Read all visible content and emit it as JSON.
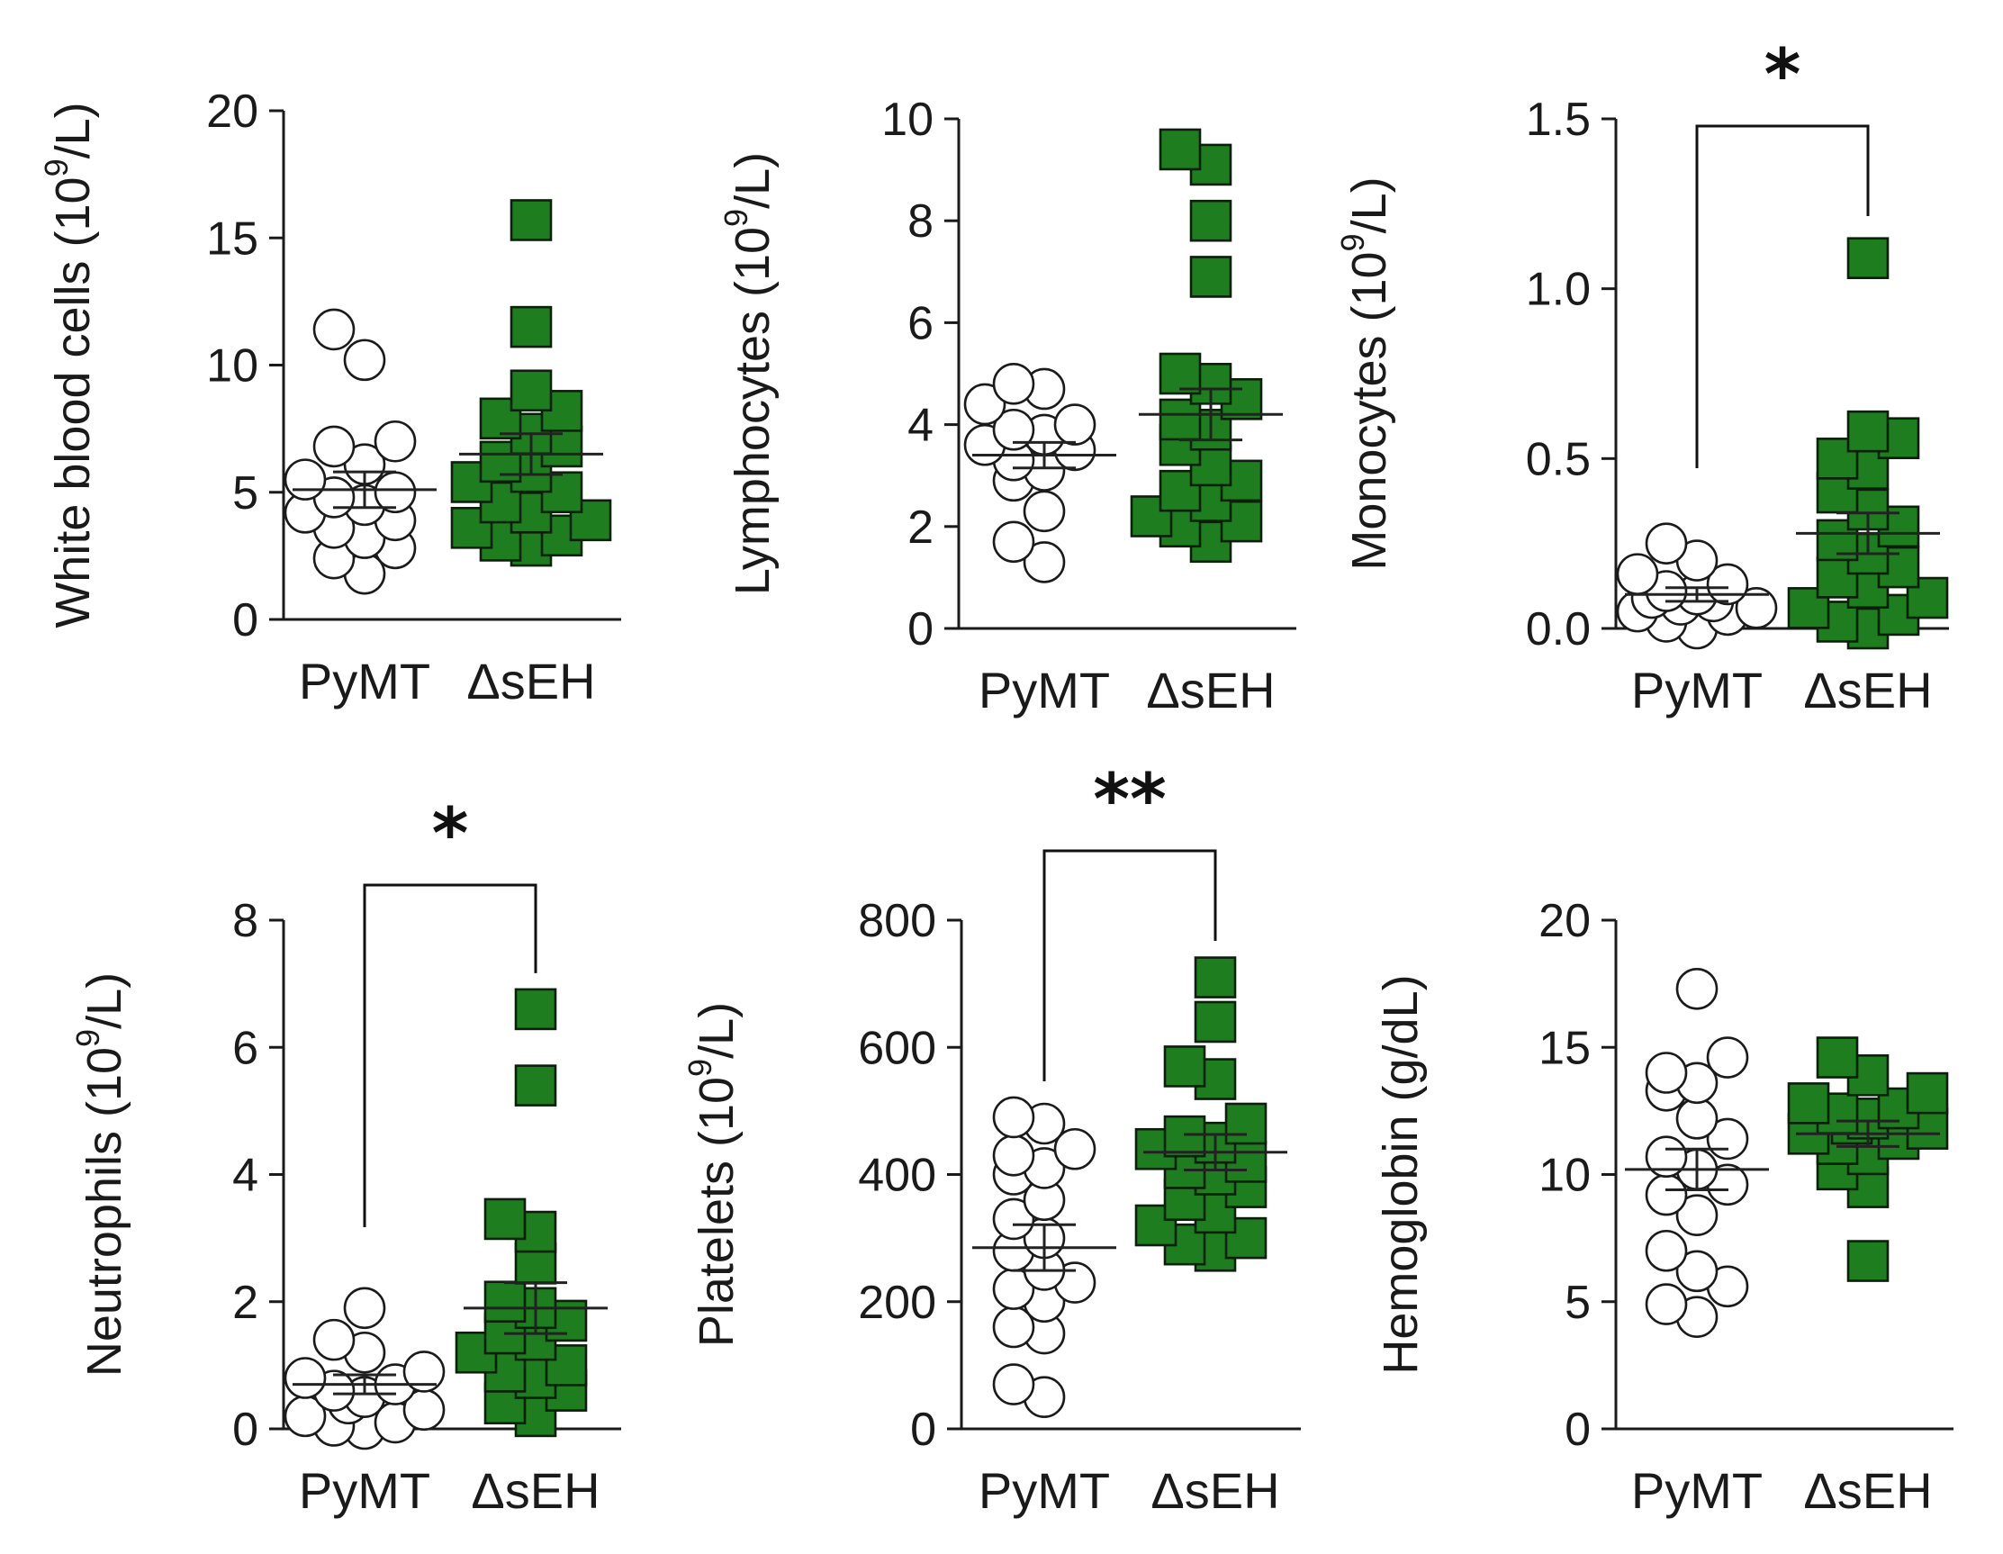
{
  "figure": {
    "group_color": "#1e7d1e",
    "categories": [
      "PyMT",
      "ΔsEH"
    ]
  },
  "chart_data": [
    {
      "type": "scatter",
      "ylabel": "White blood cells (10^9/L)",
      "ylabel_main": "White blood cells (10",
      "ylabel_sup": "9",
      "ylabel_tail": "/L)",
      "ylim": [
        0,
        20
      ],
      "yticks": [
        0,
        5,
        10,
        15,
        20
      ],
      "ytick_labels": [
        "0",
        "5",
        "10",
        "15",
        "20"
      ],
      "categories": [
        "PyMT",
        "ΔsEH"
      ],
      "series": [
        {
          "name": "PyMT",
          "marker": "circle",
          "mean": 5.1,
          "sem": 0.7,
          "values": [
            1.8,
            2.4,
            2.8,
            3.2,
            3.6,
            3.9,
            4.2,
            4.5,
            4.8,
            5.0,
            5.5,
            6.1,
            6.8,
            7.0,
            10.2,
            11.4
          ]
        },
        {
          "name": "ΔsEH",
          "marker": "square",
          "mean": 6.5,
          "sem": 0.8,
          "values": [
            2.9,
            3.1,
            3.3,
            3.6,
            3.9,
            4.2,
            4.6,
            5.0,
            5.4,
            5.8,
            6.2,
            6.8,
            7.3,
            7.9,
            8.2,
            9.0,
            11.5,
            15.7
          ]
        }
      ],
      "significance": ""
    },
    {
      "type": "scatter",
      "ylabel": "Lymphocytes (10^9/L)",
      "ylabel_main": "Lymphocytes (10",
      "ylabel_sup": "9",
      "ylabel_tail": "/L)",
      "ylim": [
        0,
        10
      ],
      "yticks": [
        0,
        2,
        4,
        6,
        8,
        10
      ],
      "ytick_labels": [
        "0",
        "2",
        "4",
        "6",
        "8",
        "10"
      ],
      "categories": [
        "PyMT",
        "ΔsEH"
      ],
      "series": [
        {
          "name": "PyMT",
          "marker": "circle",
          "mean": 3.4,
          "sem": 0.25,
          "values": [
            1.3,
            1.7,
            2.3,
            2.9,
            3.1,
            3.3,
            3.5,
            3.6,
            3.8,
            3.9,
            4.0,
            4.4,
            4.7,
            4.8
          ]
        },
        {
          "name": "ΔsEH",
          "marker": "square",
          "mean": 4.2,
          "sem": 0.5,
          "values": [
            1.7,
            2.0,
            2.1,
            2.2,
            2.5,
            2.7,
            2.9,
            3.2,
            3.6,
            3.9,
            4.1,
            4.5,
            4.8,
            5.0,
            6.9,
            8.0,
            9.1,
            9.4
          ]
        }
      ],
      "significance": ""
    },
    {
      "type": "scatter",
      "ylabel": "Monocytes (10^9/L)",
      "ylabel_main": "Monocytes (10",
      "ylabel_sup": "9",
      "ylabel_tail": "/L)",
      "ylim": [
        0,
        1.5
      ],
      "yticks": [
        0,
        0.5,
        1.0,
        1.5
      ],
      "ytick_labels": [
        "0.0",
        "0.5",
        "1.0",
        "1.5"
      ],
      "categories": [
        "PyMT",
        "ΔsEH"
      ],
      "series": [
        {
          "name": "PyMT",
          "marker": "circle",
          "mean": 0.1,
          "sem": 0.02,
          "values": [
            0.0,
            0.02,
            0.04,
            0.05,
            0.06,
            0.07,
            0.08,
            0.09,
            0.1,
            0.11,
            0.13,
            0.16,
            0.2,
            0.25
          ]
        },
        {
          "name": "ΔsEH",
          "marker": "square",
          "mean": 0.28,
          "sem": 0.06,
          "values": [
            0.0,
            0.02,
            0.04,
            0.06,
            0.09,
            0.12,
            0.15,
            0.18,
            0.22,
            0.26,
            0.3,
            0.35,
            0.4,
            0.47,
            0.5,
            0.56,
            0.58,
            1.09
          ]
        }
      ],
      "significance": "*"
    },
    {
      "type": "scatter",
      "ylabel": "Neutrophils (10^9/L)",
      "ylabel_main": "Neutrophils (10",
      "ylabel_sup": "9",
      "ylabel_tail": "/L)",
      "ylim": [
        0,
        8
      ],
      "yticks": [
        0,
        2,
        4,
        6,
        8
      ],
      "ytick_labels": [
        "0",
        "2",
        "4",
        "6",
        "8"
      ],
      "categories": [
        "PyMT",
        "ΔsEH"
      ],
      "series": [
        {
          "name": "PyMT",
          "marker": "circle",
          "mean": 0.7,
          "sem": 0.15,
          "values": [
            0.0,
            0.05,
            0.1,
            0.2,
            0.3,
            0.4,
            0.5,
            0.6,
            0.7,
            0.8,
            0.9,
            1.2,
            1.4,
            1.9
          ]
        },
        {
          "name": "ΔsEH",
          "marker": "square",
          "mean": 1.9,
          "sem": 0.4,
          "values": [
            0.2,
            0.4,
            0.6,
            0.8,
            0.9,
            1.0,
            1.2,
            1.4,
            1.5,
            1.7,
            1.9,
            2.0,
            2.6,
            3.1,
            3.3,
            5.4,
            6.6
          ]
        }
      ],
      "significance": "*"
    },
    {
      "type": "scatter",
      "ylabel": "Platelets (10^9/L)",
      "ylabel_main": "Platelets (10",
      "ylabel_sup": "9",
      "ylabel_tail": "/L)",
      "ylim": [
        0,
        800
      ],
      "yticks": [
        0,
        200,
        400,
        600,
        800
      ],
      "ytick_labels": [
        "0",
        "200",
        "400",
        "600",
        "800"
      ],
      "categories": [
        "PyMT",
        "ΔsEH"
      ],
      "series": [
        {
          "name": "PyMT",
          "marker": "circle",
          "mean": 285,
          "sem": 36,
          "values": [
            50,
            70,
            150,
            160,
            200,
            220,
            230,
            250,
            280,
            300,
            330,
            360,
            400,
            410,
            430,
            440,
            480,
            490
          ]
        },
        {
          "name": "ΔsEH",
          "marker": "square",
          "mean": 435,
          "sem": 28,
          "values": [
            280,
            290,
            300,
            320,
            340,
            360,
            380,
            400,
            410,
            420,
            440,
            450,
            460,
            480,
            550,
            570,
            640,
            710
          ]
        }
      ],
      "significance": "**"
    },
    {
      "type": "scatter",
      "ylabel": "Hemoglobin (g/dL)",
      "ylabel_main": "Hemoglobin (g/dL)",
      "ylabel_sup": "",
      "ylabel_tail": "",
      "ylim": [
        0,
        20
      ],
      "yticks": [
        0,
        5,
        10,
        15,
        20
      ],
      "ytick_labels": [
        "0",
        "5",
        "10",
        "15",
        "20"
      ],
      "categories": [
        "PyMT",
        "ΔsEH"
      ],
      "series": [
        {
          "name": "PyMT",
          "marker": "circle",
          "mean": 10.2,
          "sem": 0.8,
          "values": [
            4.4,
            4.9,
            5.6,
            6.2,
            7.0,
            8.4,
            9.2,
            9.6,
            10.2,
            10.7,
            11.4,
            12.2,
            13.3,
            13.6,
            14.0,
            14.6,
            17.3
          ]
        },
        {
          "name": "ΔsEH",
          "marker": "square",
          "mean": 11.6,
          "sem": 0.5,
          "values": [
            6.6,
            9.5,
            10.2,
            10.8,
            11.2,
            11.4,
            11.6,
            11.8,
            12.0,
            12.2,
            12.4,
            12.6,
            12.8,
            13.2,
            13.9,
            14.6
          ]
        }
      ],
      "significance": ""
    }
  ]
}
